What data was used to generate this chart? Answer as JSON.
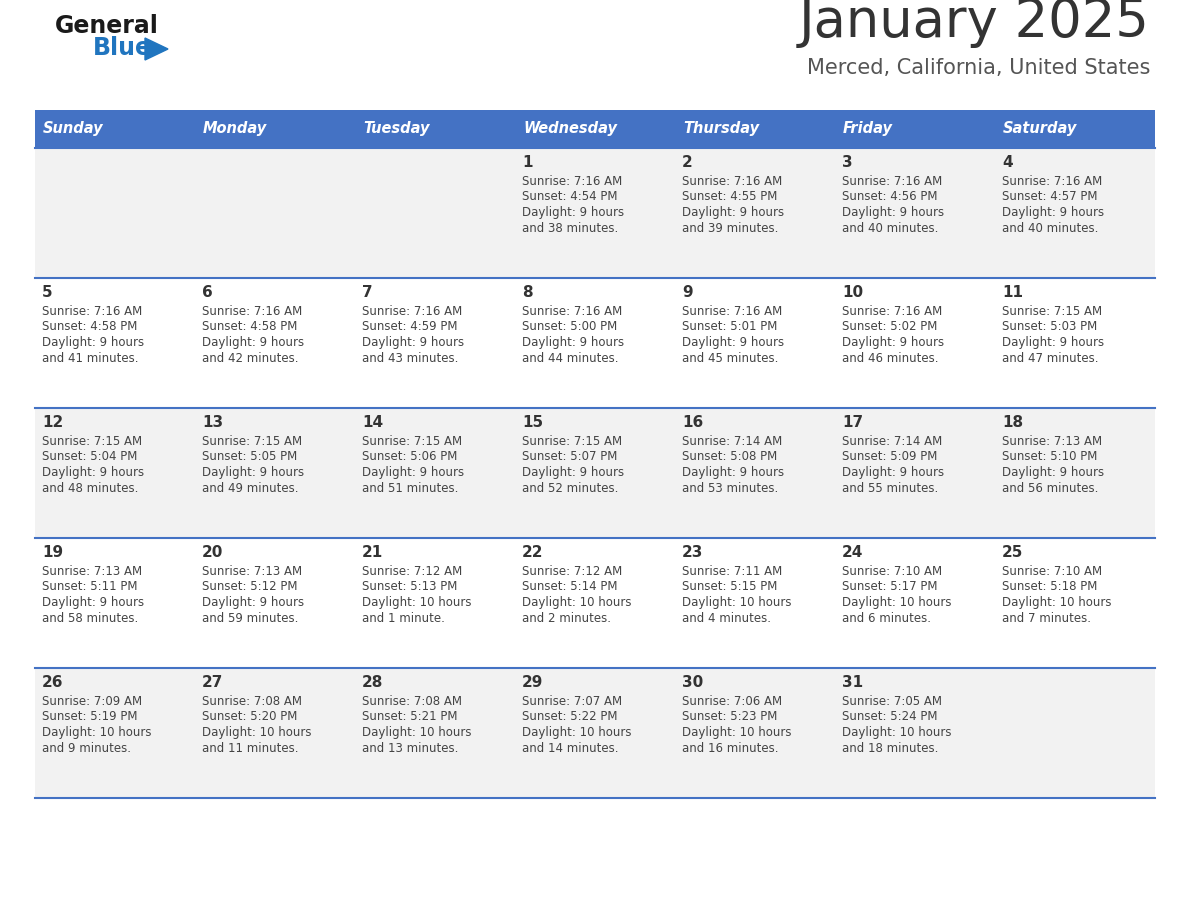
{
  "title": "January 2025",
  "subtitle": "Merced, California, United States",
  "days_of_week": [
    "Sunday",
    "Monday",
    "Tuesday",
    "Wednesday",
    "Thursday",
    "Friday",
    "Saturday"
  ],
  "header_bg": "#4472C4",
  "header_text": "#FFFFFF",
  "row_bg_odd": "#F2F2F2",
  "row_bg_even": "#FFFFFF",
  "day_num_color": "#333333",
  "cell_text_color": "#444444",
  "title_color": "#333333",
  "subtitle_color": "#555555",
  "divider_color": "#4472C4",
  "logo_general_color": "#1a1a1a",
  "logo_blue_color": "#2075BF",
  "calendar_data": [
    [
      {
        "day": null,
        "sunrise": null,
        "sunset": null,
        "daylight": null
      },
      {
        "day": null,
        "sunrise": null,
        "sunset": null,
        "daylight": null
      },
      {
        "day": null,
        "sunrise": null,
        "sunset": null,
        "daylight": null
      },
      {
        "day": "1",
        "sunrise": "7:16 AM",
        "sunset": "4:54 PM",
        "daylight": "9 hours\nand 38 minutes."
      },
      {
        "day": "2",
        "sunrise": "7:16 AM",
        "sunset": "4:55 PM",
        "daylight": "9 hours\nand 39 minutes."
      },
      {
        "day": "3",
        "sunrise": "7:16 AM",
        "sunset": "4:56 PM",
        "daylight": "9 hours\nand 40 minutes."
      },
      {
        "day": "4",
        "sunrise": "7:16 AM",
        "sunset": "4:57 PM",
        "daylight": "9 hours\nand 40 minutes."
      }
    ],
    [
      {
        "day": "5",
        "sunrise": "7:16 AM",
        "sunset": "4:58 PM",
        "daylight": "9 hours\nand 41 minutes."
      },
      {
        "day": "6",
        "sunrise": "7:16 AM",
        "sunset": "4:58 PM",
        "daylight": "9 hours\nand 42 minutes."
      },
      {
        "day": "7",
        "sunrise": "7:16 AM",
        "sunset": "4:59 PM",
        "daylight": "9 hours\nand 43 minutes."
      },
      {
        "day": "8",
        "sunrise": "7:16 AM",
        "sunset": "5:00 PM",
        "daylight": "9 hours\nand 44 minutes."
      },
      {
        "day": "9",
        "sunrise": "7:16 AM",
        "sunset": "5:01 PM",
        "daylight": "9 hours\nand 45 minutes."
      },
      {
        "day": "10",
        "sunrise": "7:16 AM",
        "sunset": "5:02 PM",
        "daylight": "9 hours\nand 46 minutes."
      },
      {
        "day": "11",
        "sunrise": "7:15 AM",
        "sunset": "5:03 PM",
        "daylight": "9 hours\nand 47 minutes."
      }
    ],
    [
      {
        "day": "12",
        "sunrise": "7:15 AM",
        "sunset": "5:04 PM",
        "daylight": "9 hours\nand 48 minutes."
      },
      {
        "day": "13",
        "sunrise": "7:15 AM",
        "sunset": "5:05 PM",
        "daylight": "9 hours\nand 49 minutes."
      },
      {
        "day": "14",
        "sunrise": "7:15 AM",
        "sunset": "5:06 PM",
        "daylight": "9 hours\nand 51 minutes."
      },
      {
        "day": "15",
        "sunrise": "7:15 AM",
        "sunset": "5:07 PM",
        "daylight": "9 hours\nand 52 minutes."
      },
      {
        "day": "16",
        "sunrise": "7:14 AM",
        "sunset": "5:08 PM",
        "daylight": "9 hours\nand 53 minutes."
      },
      {
        "day": "17",
        "sunrise": "7:14 AM",
        "sunset": "5:09 PM",
        "daylight": "9 hours\nand 55 minutes."
      },
      {
        "day": "18",
        "sunrise": "7:13 AM",
        "sunset": "5:10 PM",
        "daylight": "9 hours\nand 56 minutes."
      }
    ],
    [
      {
        "day": "19",
        "sunrise": "7:13 AM",
        "sunset": "5:11 PM",
        "daylight": "9 hours\nand 58 minutes."
      },
      {
        "day": "20",
        "sunrise": "7:13 AM",
        "sunset": "5:12 PM",
        "daylight": "9 hours\nand 59 minutes."
      },
      {
        "day": "21",
        "sunrise": "7:12 AM",
        "sunset": "5:13 PM",
        "daylight": "10 hours\nand 1 minute."
      },
      {
        "day": "22",
        "sunrise": "7:12 AM",
        "sunset": "5:14 PM",
        "daylight": "10 hours\nand 2 minutes."
      },
      {
        "day": "23",
        "sunrise": "7:11 AM",
        "sunset": "5:15 PM",
        "daylight": "10 hours\nand 4 minutes."
      },
      {
        "day": "24",
        "sunrise": "7:10 AM",
        "sunset": "5:17 PM",
        "daylight": "10 hours\nand 6 minutes."
      },
      {
        "day": "25",
        "sunrise": "7:10 AM",
        "sunset": "5:18 PM",
        "daylight": "10 hours\nand 7 minutes."
      }
    ],
    [
      {
        "day": "26",
        "sunrise": "7:09 AM",
        "sunset": "5:19 PM",
        "daylight": "10 hours\nand 9 minutes."
      },
      {
        "day": "27",
        "sunrise": "7:08 AM",
        "sunset": "5:20 PM",
        "daylight": "10 hours\nand 11 minutes."
      },
      {
        "day": "28",
        "sunrise": "7:08 AM",
        "sunset": "5:21 PM",
        "daylight": "10 hours\nand 13 minutes."
      },
      {
        "day": "29",
        "sunrise": "7:07 AM",
        "sunset": "5:22 PM",
        "daylight": "10 hours\nand 14 minutes."
      },
      {
        "day": "30",
        "sunrise": "7:06 AM",
        "sunset": "5:23 PM",
        "daylight": "10 hours\nand 16 minutes."
      },
      {
        "day": "31",
        "sunrise": "7:05 AM",
        "sunset": "5:24 PM",
        "daylight": "10 hours\nand 18 minutes."
      },
      {
        "day": null,
        "sunrise": null,
        "sunset": null,
        "daylight": null
      }
    ]
  ]
}
